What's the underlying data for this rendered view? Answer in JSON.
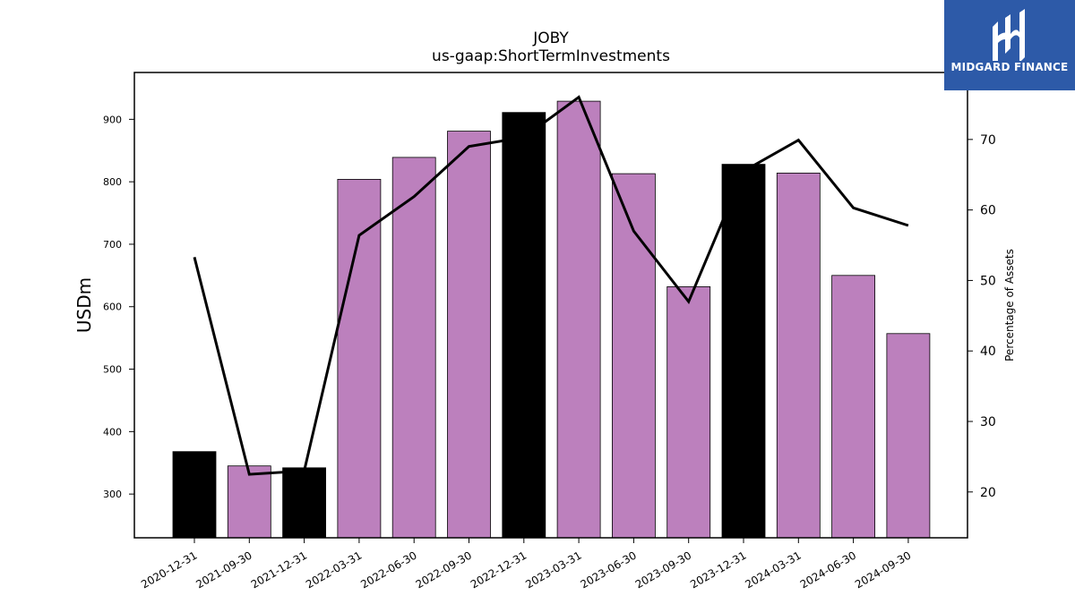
{
  "chart_data": {
    "type": "bar",
    "title": "JOBY",
    "subtitle": "us-gaap:ShortTermInvestments",
    "ylabel": "USDm",
    "y2label": "Percentage of Assets",
    "categories": [
      "2020-12-31",
      "2021-09-30",
      "2021-12-31",
      "2022-03-31",
      "2022-06-30",
      "2022-09-30",
      "2022-12-31",
      "2023-03-31",
      "2023-06-30",
      "2023-09-30",
      "2023-12-31",
      "2024-03-31",
      "2024-06-30",
      "2024-09-30"
    ],
    "series": [
      {
        "type": "bar",
        "values": [
          368,
          345,
          342,
          804,
          839,
          881,
          911,
          929,
          813,
          632,
          828,
          814,
          650,
          557
        ],
        "colors": [
          "#000000",
          "#bc80bd",
          "#000000",
          "#bc80bd",
          "#bc80bd",
          "#bc80bd",
          "#000000",
          "#bc80bd",
          "#bc80bd",
          "#bc80bd",
          "#000000",
          "#bc80bd",
          "#bc80bd",
          "#bc80bd"
        ]
      },
      {
        "type": "line",
        "axis": "right",
        "color": "#000000",
        "values": [
          53.3,
          22.5,
          23.0,
          56.4,
          61.9,
          69.0,
          70.3,
          76.0,
          57.0,
          47.0,
          65.5,
          69.9,
          60.3,
          57.8
        ]
      }
    ],
    "ylim": [
      230,
      975
    ],
    "y2lim": [
      13.5,
      79.5
    ],
    "yticks": [
      300,
      400,
      500,
      600,
      700,
      800,
      900
    ],
    "y2ticks": [
      20,
      30,
      40,
      50,
      60,
      70
    ],
    "grid": false,
    "legend": "none"
  },
  "logo": {
    "text": "MIDGARD FINANCE",
    "background": "#2d5aa8"
  }
}
